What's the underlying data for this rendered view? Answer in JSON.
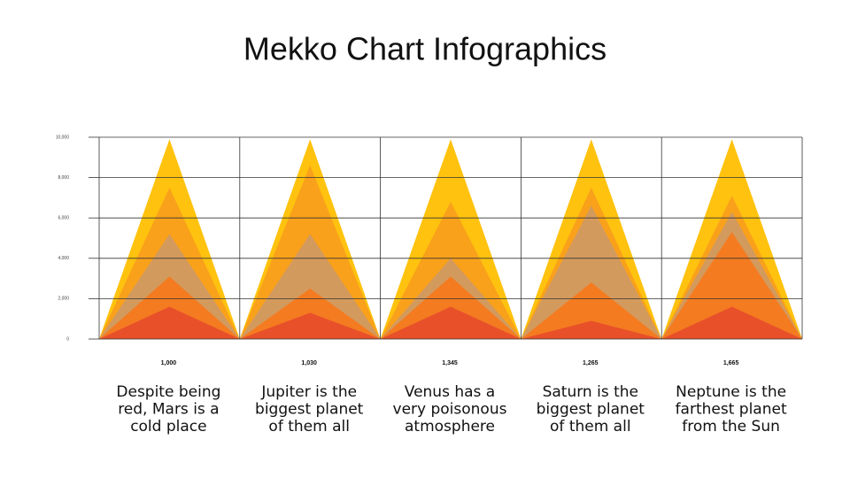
{
  "chart_data": {
    "type": "mekko-triangles",
    "title": "Mekko Chart Infographics",
    "categories": [
      "1,000",
      "1,030",
      "1,345",
      "1,265",
      "1,665"
    ],
    "descriptions": [
      [
        "Despite being",
        "red, Mars is a",
        "cold place"
      ],
      [
        "Jupiter is the",
        "biggest planet",
        "of them all"
      ],
      [
        "Venus has a",
        "very poisonous",
        "atmosphere"
      ],
      [
        "Saturn is the",
        "biggest planet",
        "of them all"
      ],
      [
        "Neptune is the",
        "farthest planet",
        "from the Sun"
      ]
    ],
    "series": [
      {
        "color": "#FFC20E",
        "values": [
          9900,
          9900,
          9900,
          9900,
          9900
        ]
      },
      {
        "color": "#F9A11B",
        "values": [
          7500,
          8600,
          6800,
          7500,
          7100
        ]
      },
      {
        "color": "#D39A5E",
        "values": [
          5200,
          5200,
          4000,
          6600,
          6300
        ]
      },
      {
        "color": "#F47B20",
        "values": [
          3100,
          2500,
          3100,
          2800,
          5300
        ]
      },
      {
        "color": "#E8502A",
        "values": [
          1600,
          1300,
          1600,
          900,
          1600
        ]
      }
    ],
    "ylim": [
      0,
      10000
    ],
    "yticks": [
      0,
      {
        "value": 2000,
        "label": "2,000"
      },
      {
        "value": 4000,
        "label": "4,000"
      },
      {
        "value": 6000,
        "label": "6,000"
      },
      {
        "value": 8000,
        "label": "8,000"
      },
      {
        "value": 10000,
        "label": "10,000"
      }
    ],
    "grid": true
  }
}
